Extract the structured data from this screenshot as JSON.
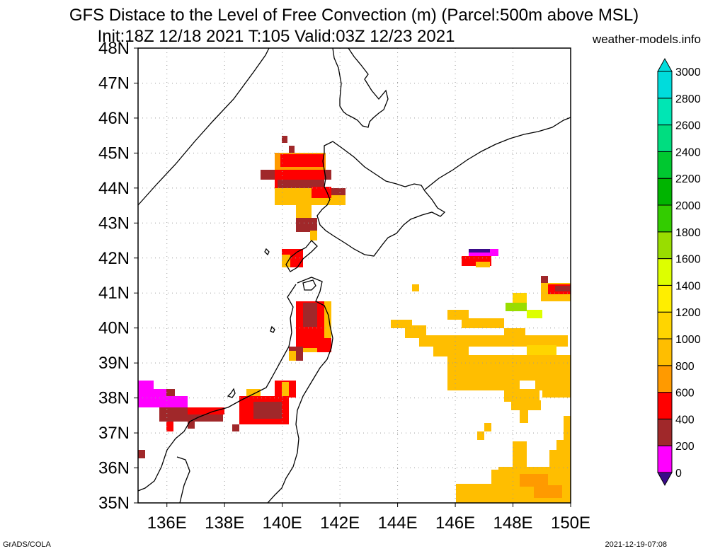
{
  "title": {
    "line1": "GFS Distace to the Level of Free Convection (m) (Parcel:500m above MSL)",
    "line2": "Init:18Z 12/18 2021 T:105 Valid:03Z 12/23 2021",
    "site": "weather-models.info"
  },
  "footer": {
    "left": "GrADS/COLA",
    "right": "2021-12-19-07:08"
  },
  "map": {
    "lat_labels": [
      "35N",
      "36N",
      "37N",
      "38N",
      "39N",
      "40N",
      "41N",
      "42N",
      "43N",
      "44N",
      "45N",
      "46N",
      "47N",
      "48N"
    ],
    "lon_labels": [
      "136E",
      "138E",
      "140E",
      "142E",
      "144E",
      "146E",
      "148E",
      "150E"
    ],
    "lat_range": [
      35,
      48
    ],
    "lon_range": [
      135,
      150
    ],
    "grid": true
  },
  "colorbar": {
    "labels": [
      "0",
      "200",
      "400",
      "600",
      "800",
      "1000",
      "1200",
      "1400",
      "1600",
      "1800",
      "2000",
      "2200",
      "2400",
      "2600",
      "2800",
      "3000"
    ],
    "colors": [
      "#3a0a8a",
      "#ff00ff",
      "#a0282a",
      "#ff0000",
      "#ff9a00",
      "#ffbe00",
      "#ffd500",
      "#ffee00",
      "#ddff00",
      "#99dd00",
      "#33cc00",
      "#00b400",
      "#00c830",
      "#00dd80",
      "#00e6b4",
      "#00dcdc"
    ],
    "min_color": "#3a0a8a",
    "max_color": "#00dcdc"
  },
  "legend_colors": {
    "c200": "#ff00ff",
    "c400": "#a0282a",
    "c600": "#ff0000",
    "c800": "#ff9a00",
    "c1000": "#ffbe00",
    "c1200": "#ffd500",
    "c1600": "#ddff00",
    "c1800": "#99dd00",
    "c0": "#3a0a8a"
  }
}
